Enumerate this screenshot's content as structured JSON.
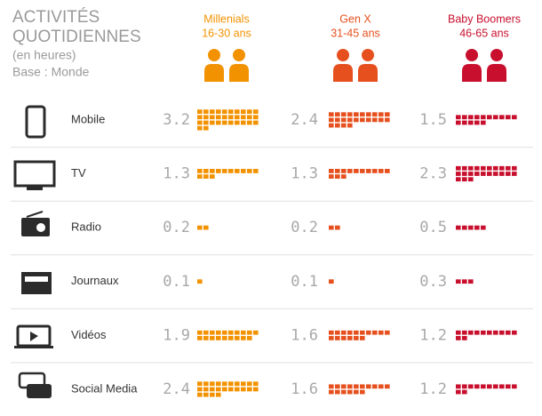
{
  "chart_data": {
    "type": "waffle",
    "title": [
      "ACTIVITÉS",
      "QUOTIDIENNES"
    ],
    "subtitle": "(en heures)",
    "note": "Base : Monde",
    "categories": [
      "Mobile",
      "TV",
      "Radio",
      "Journaux",
      "Vidéos",
      "Social Media"
    ],
    "series": [
      {
        "name": "Millenials",
        "age": "16-30 ans",
        "color": "#f39200",
        "values": [
          3.2,
          1.3,
          0.2,
          0.1,
          1.9,
          2.4
        ]
      },
      {
        "name": "Gen X",
        "age": "31-45 ans",
        "color": "#e6501e",
        "values": [
          2.4,
          1.3,
          0.2,
          0.1,
          1.6,
          1.6
        ]
      },
      {
        "name": "Baby Boomers",
        "age": "46-65 ans",
        "color": "#c8102e",
        "values": [
          1.5,
          2.3,
          0.5,
          0.3,
          1.2,
          1.2
        ]
      }
    ]
  }
}
